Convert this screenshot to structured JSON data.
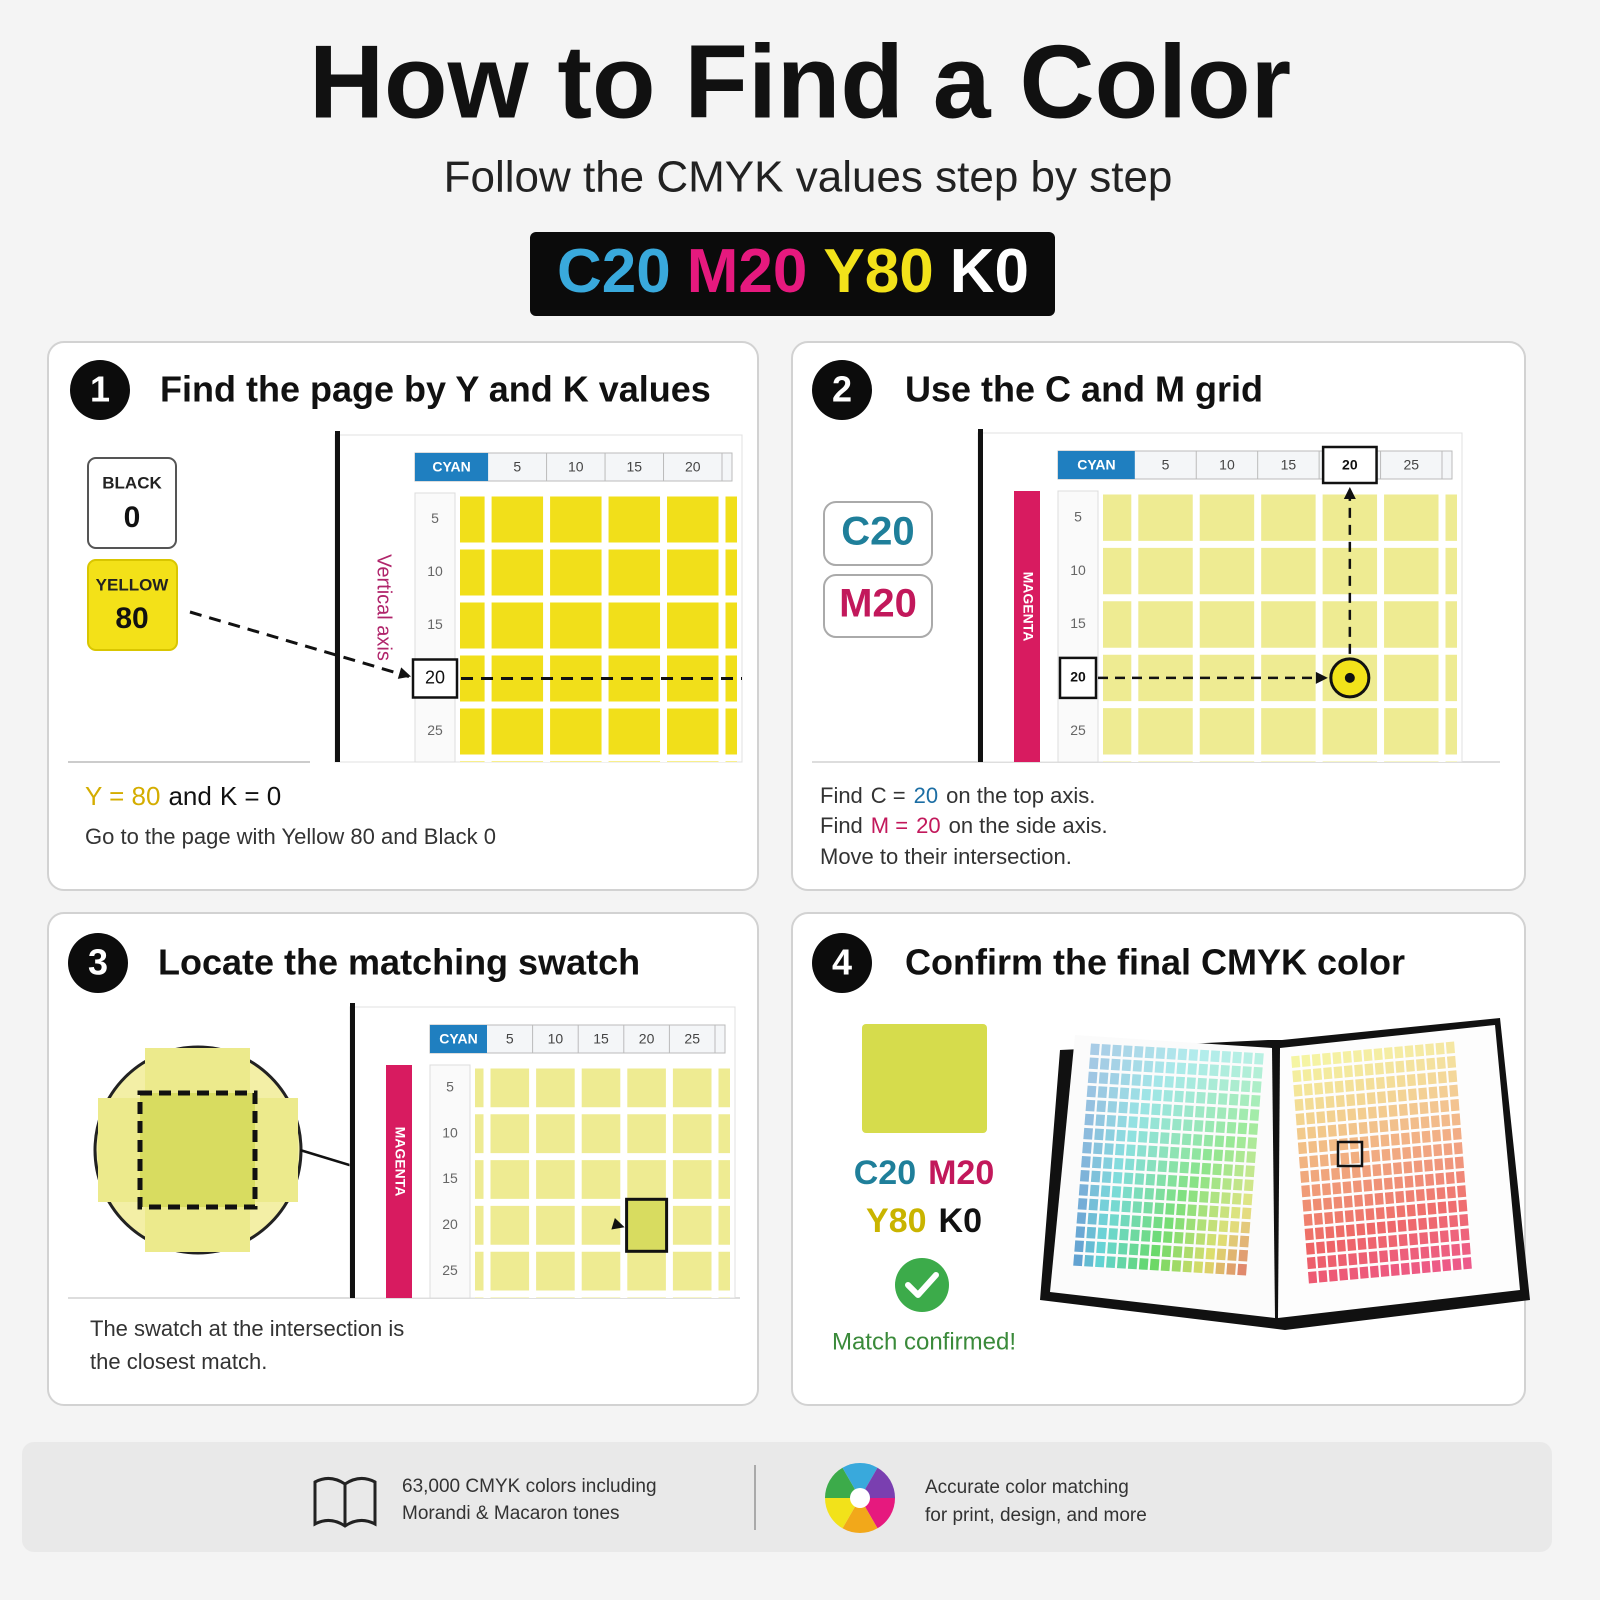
{
  "header": {
    "title": "How to Find a Color",
    "subtitle": "Follow the CMYK values step by step",
    "code": [
      "C20",
      "M20",
      "Y80",
      "K0"
    ]
  },
  "steps": [
    {
      "number": "1",
      "title": "Find the page by Y and K values",
      "tags": [
        {
          "label": "BLACK",
          "value": "0"
        },
        {
          "label": "YELLOW",
          "value": "80"
        }
      ],
      "page": {
        "corner": "CYAN",
        "top": [
          "5",
          "10",
          "15",
          "20"
        ],
        "side_label": "Vertical axis",
        "side": [
          "5",
          "10",
          "15",
          "20",
          "25"
        ]
      },
      "caption": [
        [
          "Y = 80",
          "and",
          "K = 0"
        ],
        [
          "Go to the page with Yellow 80 and Black 0"
        ]
      ]
    },
    {
      "number": "2",
      "title": "Use the C and M grid",
      "tags": [
        "C20",
        "M20"
      ],
      "page": {
        "corner": "CYAN",
        "top": [
          "5",
          "10",
          "15",
          "20",
          "25"
        ],
        "side_label": "MAGENTA",
        "side": [
          "5",
          "10",
          "15",
          "20",
          "25"
        ]
      },
      "caption": [
        [
          "Find",
          "C =",
          "20",
          "on the top axis."
        ],
        [
          "Find",
          "M =",
          "20",
          "on the side axis."
        ],
        [
          "Move to their intersection."
        ]
      ]
    },
    {
      "number": "3",
      "title": "Locate the matching swatch",
      "page": {
        "corner": "CYAN",
        "top": [
          "5",
          "10",
          "15",
          "20",
          "25"
        ],
        "side_label": "MAGENTA",
        "side": [
          "5",
          "10",
          "15",
          "20",
          "25"
        ]
      },
      "caption": [
        [
          "The swatch at the intersection is"
        ],
        [
          "the closest match."
        ]
      ]
    },
    {
      "number": "4",
      "title": "Confirm the final CMYK color",
      "code": [
        [
          "C20",
          "M20"
        ],
        [
          "Y80",
          "K0"
        ]
      ],
      "status": "Match confirmed!"
    }
  ],
  "footer": [
    [
      "63,000 CMYK colors including",
      "Morandi & Macaron tones"
    ],
    [
      "Accurate color matching",
      "for print, design, and more"
    ]
  ]
}
